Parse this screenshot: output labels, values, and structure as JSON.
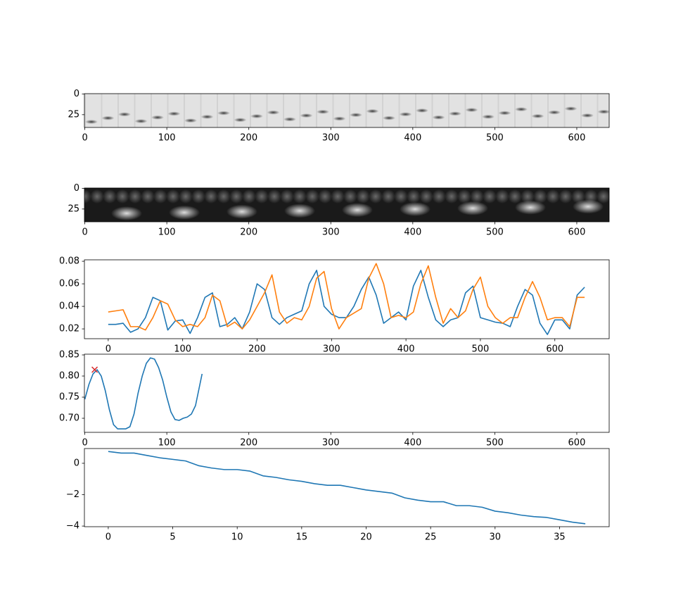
{
  "chart_data": [
    {
      "type": "image",
      "cmap": "light",
      "xlim": [
        -0.5,
        639.5
      ],
      "ylim": [
        40.5,
        -0.5
      ],
      "xticks": [
        0,
        100,
        200,
        300,
        400,
        500,
        600
      ],
      "yticks": [
        0,
        25
      ]
    },
    {
      "type": "image",
      "cmap": "dark",
      "xlim": [
        -0.5,
        639.5
      ],
      "ylim": [
        40.5,
        -0.5
      ],
      "xticks": [
        0,
        100,
        200,
        300,
        400,
        500,
        600
      ],
      "yticks": [
        0,
        25
      ]
    },
    {
      "type": "line",
      "xlim": [
        -32,
        673
      ],
      "ylim": [
        0.0113,
        0.0813
      ],
      "xticks": [
        0,
        100,
        200,
        300,
        400,
        500,
        600
      ],
      "yticks": [
        0.02,
        0.04,
        0.06,
        0.08
      ],
      "series": [
        {
          "color": "#1f77b4",
          "x": [
            0,
            10,
            20,
            30,
            40,
            50,
            60,
            70,
            80,
            90,
            100,
            110,
            120,
            130,
            140,
            150,
            160,
            170,
            180,
            190,
            200,
            210,
            220,
            230,
            240,
            250,
            260,
            270,
            280,
            290,
            300,
            310,
            320,
            330,
            340,
            350,
            360,
            370,
            380,
            390,
            400,
            410,
            420,
            430,
            440,
            450,
            460,
            470,
            480,
            490,
            500,
            510,
            520,
            530,
            540,
            550,
            560,
            570,
            580,
            590,
            600,
            610,
            620,
            630,
            640
          ],
          "values": [
            0.024,
            0.024,
            0.025,
            0.017,
            0.02,
            0.03,
            0.048,
            0.045,
            0.019,
            0.027,
            0.028,
            0.016,
            0.03,
            0.048,
            0.052,
            0.022,
            0.024,
            0.03,
            0.02,
            0.035,
            0.06,
            0.055,
            0.03,
            0.024,
            0.03,
            0.033,
            0.036,
            0.06,
            0.072,
            0.04,
            0.033,
            0.03,
            0.03,
            0.04,
            0.055,
            0.066,
            0.05,
            0.025,
            0.03,
            0.035,
            0.028,
            0.058,
            0.072,
            0.048,
            0.028,
            0.022,
            0.028,
            0.03,
            0.052,
            0.058,
            0.03,
            0.028,
            0.026,
            0.025,
            0.022,
            0.04,
            0.055,
            0.05,
            0.025,
            0.015,
            0.028,
            0.028,
            0.02,
            0.05,
            0.057
          ]
        },
        {
          "color": "#ff7f0e",
          "x": [
            0,
            10,
            20,
            30,
            40,
            50,
            60,
            70,
            80,
            90,
            100,
            110,
            120,
            130,
            140,
            150,
            160,
            170,
            180,
            190,
            200,
            210,
            220,
            230,
            240,
            250,
            260,
            270,
            280,
            290,
            300,
            310,
            320,
            330,
            340,
            350,
            360,
            370,
            380,
            390,
            400,
            410,
            420,
            430,
            440,
            450,
            460,
            470,
            480,
            490,
            500,
            510,
            520,
            530,
            540,
            550,
            560,
            570,
            580,
            590,
            600,
            610,
            620,
            630,
            640
          ],
          "values": [
            0.035,
            0.036,
            0.037,
            0.022,
            0.022,
            0.019,
            0.03,
            0.045,
            0.042,
            0.028,
            0.022,
            0.024,
            0.022,
            0.03,
            0.05,
            0.045,
            0.022,
            0.026,
            0.02,
            0.028,
            0.04,
            0.052,
            0.068,
            0.035,
            0.025,
            0.03,
            0.028,
            0.04,
            0.065,
            0.071,
            0.038,
            0.02,
            0.03,
            0.034,
            0.038,
            0.065,
            0.078,
            0.06,
            0.03,
            0.032,
            0.03,
            0.035,
            0.06,
            0.076,
            0.048,
            0.025,
            0.038,
            0.03,
            0.036,
            0.055,
            0.066,
            0.04,
            0.03,
            0.025,
            0.03,
            0.03,
            0.048,
            0.062,
            0.048,
            0.028,
            0.03,
            0.03,
            0.022,
            0.048,
            0.048
          ]
        }
      ]
    },
    {
      "type": "line",
      "xlim": [
        -0.5,
        639.5
      ],
      "ylim": [
        0.6667,
        0.8517
      ],
      "xticks": [
        0,
        100,
        200,
        300,
        400,
        500,
        600
      ],
      "yticks": [
        {
          "value": 0.7,
          "label": "0.70"
        },
        0.75,
        {
          "value": 0.8,
          "label": "0.80"
        },
        0.85
      ],
      "series": [
        {
          "color": "#1f77b4",
          "x": [
            0,
            5,
            10,
            15,
            20,
            25,
            30,
            35,
            40,
            50,
            55,
            60,
            65,
            70,
            75,
            80,
            85,
            90,
            95,
            100,
            105,
            110,
            115,
            120,
            125,
            130,
            135,
            143
          ],
          "values": [
            0.745,
            0.78,
            0.805,
            0.815,
            0.8,
            0.765,
            0.72,
            0.685,
            0.675,
            0.675,
            0.68,
            0.71,
            0.76,
            0.8,
            0.83,
            0.843,
            0.84,
            0.82,
            0.79,
            0.75,
            0.715,
            0.697,
            0.695,
            0.7,
            0.703,
            0.71,
            0.73,
            0.805
          ]
        },
        {
          "color": "#d62728",
          "marker": "x",
          "x": [
            12
          ],
          "values": [
            0.815
          ]
        }
      ]
    },
    {
      "type": "line",
      "xlim": [
        -1.85,
        38.85
      ],
      "ylim": [
        -4.04,
        0.94
      ],
      "xticks": [
        0,
        5,
        10,
        15,
        20,
        25,
        30,
        35
      ],
      "yticks": [
        {
          "value": -4,
          "label": "−4"
        },
        {
          "value": -2,
          "label": "−2"
        },
        0
      ],
      "series": [
        {
          "color": "#1f77b4",
          "x": [
            0,
            1,
            2,
            3,
            4,
            5,
            6,
            7,
            8,
            9,
            10,
            11,
            12,
            13,
            14,
            15,
            16,
            17,
            18,
            19,
            20,
            21,
            22,
            23,
            24,
            25,
            26,
            27,
            28,
            29,
            30,
            31,
            32,
            33,
            34,
            35,
            36,
            37
          ],
          "values": [
            0.75,
            0.65,
            0.65,
            0.5,
            0.35,
            0.25,
            0.15,
            -0.15,
            -0.3,
            -0.4,
            -0.4,
            -0.5,
            -0.8,
            -0.9,
            -1.05,
            -1.15,
            -1.3,
            -1.4,
            -1.4,
            -1.55,
            -1.7,
            -1.8,
            -1.9,
            -2.2,
            -2.35,
            -2.45,
            -2.45,
            -2.7,
            -2.7,
            -2.8,
            -3.05,
            -3.15,
            -3.3,
            -3.4,
            -3.45,
            -3.6,
            -3.75,
            -3.85
          ]
        }
      ]
    }
  ]
}
